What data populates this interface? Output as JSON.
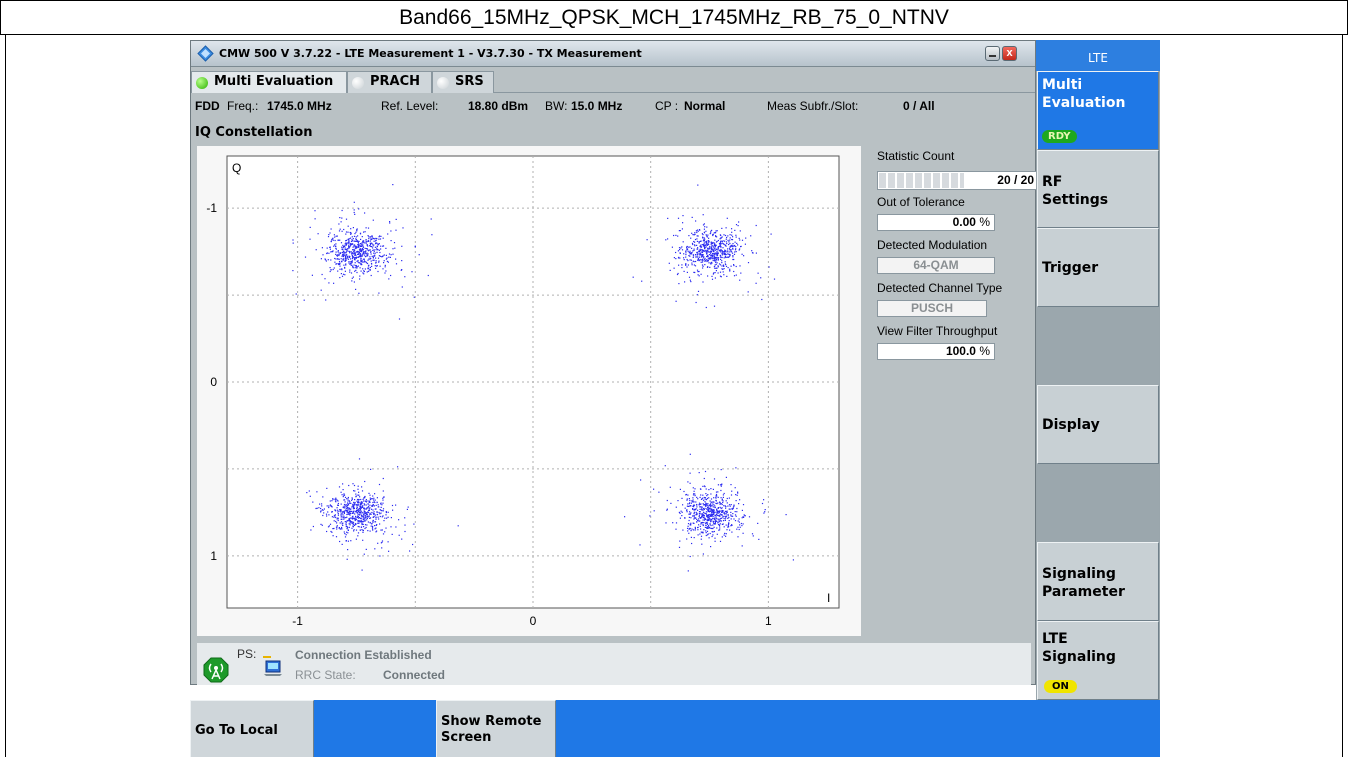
{
  "caption": "Band66_15MHz_QPSK_MCH_1745MHz_RB_75_0_NTNV",
  "window": {
    "title": "CMW 500 V 3.7.22 - LTE Measurement 1 - V3.7.30 - TX Measurement",
    "close_glyph": "x"
  },
  "tabs": [
    {
      "label": "Multi Evaluation",
      "state": "active"
    },
    {
      "label": "PRACH",
      "state": "inactive"
    },
    {
      "label": "SRS",
      "state": "inactive"
    }
  ],
  "info": {
    "duplex": "FDD",
    "freq_label": "Freq.:",
    "freq_value": "1745.0 MHz",
    "ref_label": "Ref. Level:",
    "ref_value": "18.80 dBm",
    "bw_label": "BW:",
    "bw_value": "15.0 MHz",
    "cp_label": "CP :",
    "cp_value": "Normal",
    "meas_label": "Meas Subfr./Slot:",
    "meas_value": "0  / All"
  },
  "iq_title": "IQ Constellation",
  "plot": {
    "y_axis_label": "Q",
    "x_axis_label": "I",
    "x_ticks": [
      "-1",
      "0",
      "1"
    ],
    "y_ticks": [
      "1",
      "0",
      "-1"
    ],
    "point_color": "#2a2af0"
  },
  "stats": {
    "count_label": "Statistic Count",
    "count_value": "20 / 20",
    "count_progress": 1.0,
    "oot_label": "Out of Tolerance",
    "oot_value": "0.00",
    "oot_unit": "%",
    "mod_label": "Detected Modulation",
    "mod_value": "64-QAM",
    "chan_label": "Detected Channel Type",
    "chan_value": "PUSCH",
    "vft_label": "View Filter Throughput",
    "vft_value": "100.0",
    "vft_unit": "%"
  },
  "status": {
    "ps_label": "PS:",
    "connection": "Connection Established",
    "rrc_label": "RRC State:",
    "rrc_value": "Connected"
  },
  "softkeys": {
    "header": "LTE",
    "multi_eval": "Multi Evaluation",
    "multi_eval_badge": "RDY",
    "rf_settings": "RF Settings",
    "trigger": "Trigger",
    "display": "Display",
    "signaling_param": "Signaling Parameter",
    "lte_signaling": "LTE Signaling",
    "lte_signaling_badge": "ON"
  },
  "bottom": {
    "go_to_local": "Go To Local",
    "show_remote": "Show Remote Screen"
  },
  "chart_data": {
    "type": "scatter",
    "xlabel": "I",
    "ylabel": "Q",
    "xlim": [
      -1.3,
      1.3
    ],
    "ylim": [
      -1.3,
      1.3
    ],
    "x_ticks": [
      -1,
      0,
      1
    ],
    "y_ticks": [
      -1,
      0,
      1
    ],
    "grid": true,
    "clusters": [
      {
        "center_x": -0.75,
        "center_y": 0.75
      },
      {
        "center_x": 0.75,
        "center_y": 0.75
      },
      {
        "center_x": -0.75,
        "center_y": -0.75
      },
      {
        "center_x": 0.75,
        "center_y": -0.75
      }
    ]
  }
}
